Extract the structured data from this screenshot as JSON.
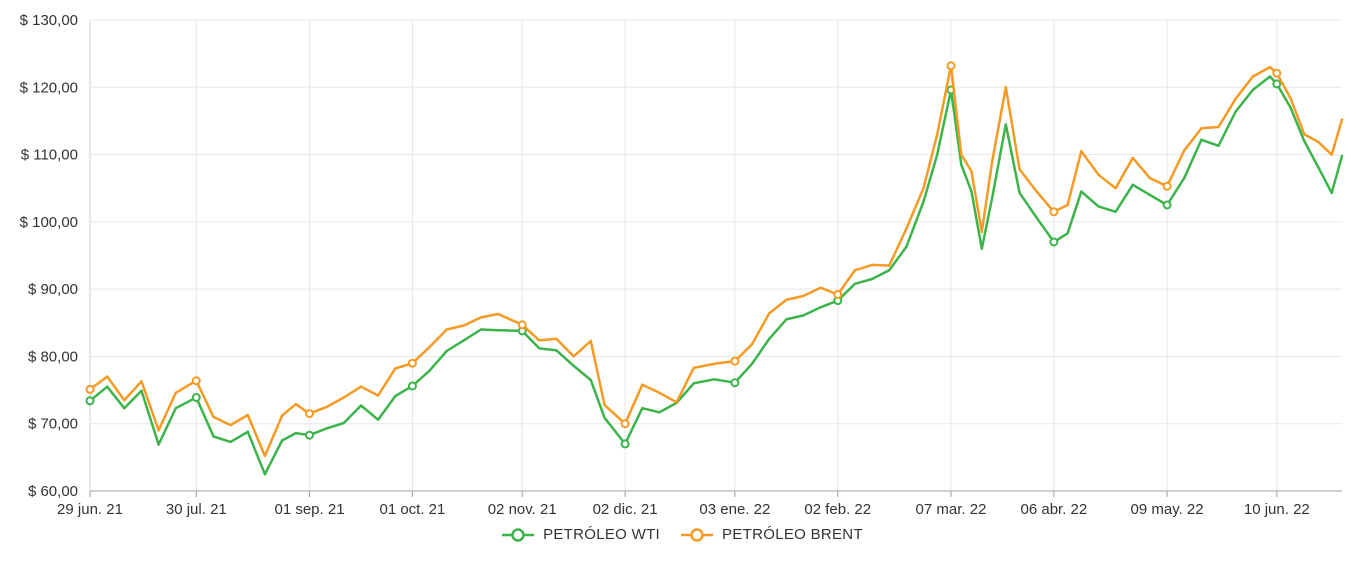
{
  "chart_data": {
    "type": "line",
    "title": "",
    "xlabel": "",
    "ylabel": "",
    "ylim": [
      60,
      130
    ],
    "y_ticks": [
      60,
      70,
      80,
      90,
      100,
      110,
      120,
      130
    ],
    "y_tick_labels": [
      "$ 60,00",
      "$ 70,00",
      "$ 80,00",
      "$ 90,00",
      "$ 100,00",
      "$ 110,00",
      "$ 120,00",
      "$ 130,00"
    ],
    "x_ticks": [
      "2021-06-29",
      "2021-07-30",
      "2021-09-01",
      "2021-10-01",
      "2021-11-02",
      "2021-12-02",
      "2022-01-03",
      "2022-02-02",
      "2022-03-07",
      "2022-04-06",
      "2022-05-09",
      "2022-06-10"
    ],
    "x_tick_labels": [
      "29 jun. 21",
      "30 jul. 21",
      "01 sep. 21",
      "01 oct. 21",
      "02 nov. 21",
      "02 dic. 21",
      "03 ene. 22",
      "02 feb. 22",
      "07 mar. 22",
      "06 abr. 22",
      "09 may. 22",
      "10 jun. 22"
    ],
    "x_range": [
      "2021-06-29",
      "2022-06-29"
    ],
    "grid": true,
    "legend_position": "bottom-center",
    "series": [
      {
        "name": "PETRÓLEO WTI",
        "color": "#3cb44b",
        "x": [
          "2021-06-29",
          "2021-07-04",
          "2021-07-09",
          "2021-07-14",
          "2021-07-19",
          "2021-07-24",
          "2021-07-30",
          "2021-08-04",
          "2021-08-09",
          "2021-08-14",
          "2021-08-19",
          "2021-08-24",
          "2021-08-28",
          "2021-09-01",
          "2021-09-06",
          "2021-09-11",
          "2021-09-16",
          "2021-09-21",
          "2021-09-26",
          "2021-10-01",
          "2021-10-06",
          "2021-10-11",
          "2021-10-16",
          "2021-10-21",
          "2021-10-26",
          "2021-11-02",
          "2021-11-07",
          "2021-11-12",
          "2021-11-17",
          "2021-11-22",
          "2021-11-26",
          "2021-12-02",
          "2021-12-07",
          "2021-12-12",
          "2021-12-17",
          "2021-12-22",
          "2021-12-28",
          "2022-01-03",
          "2022-01-08",
          "2022-01-13",
          "2022-01-18",
          "2022-01-23",
          "2022-01-28",
          "2022-02-02",
          "2022-02-07",
          "2022-02-12",
          "2022-02-17",
          "2022-02-22",
          "2022-02-27",
          "2022-03-03",
          "2022-03-07",
          "2022-03-10",
          "2022-03-13",
          "2022-03-16",
          "2022-03-19",
          "2022-03-23",
          "2022-03-27",
          "2022-04-01",
          "2022-04-06",
          "2022-04-10",
          "2022-04-14",
          "2022-04-19",
          "2022-04-24",
          "2022-04-29",
          "2022-05-04",
          "2022-05-09",
          "2022-05-14",
          "2022-05-19",
          "2022-05-24",
          "2022-05-29",
          "2022-06-03",
          "2022-06-08",
          "2022-06-10",
          "2022-06-14",
          "2022-06-18",
          "2022-06-22",
          "2022-06-26",
          "2022-06-29"
        ],
        "values": [
          73.4,
          75.5,
          72.3,
          74.9,
          66.9,
          72.3,
          73.9,
          68.1,
          67.3,
          68.8,
          62.5,
          67.5,
          68.6,
          68.3,
          69.3,
          70.1,
          72.7,
          70.6,
          74.1,
          75.6,
          77.9,
          80.8,
          82.4,
          84.0,
          83.9,
          83.8,
          81.2,
          80.9,
          78.6,
          76.5,
          70.9,
          67.0,
          72.3,
          71.7,
          73.1,
          76.0,
          76.6,
          76.1,
          78.9,
          82.6,
          85.5,
          86.1,
          87.3,
          88.3,
          90.8,
          91.5,
          92.8,
          96.3,
          103.0,
          110.0,
          119.6,
          108.5,
          104.5,
          96.0,
          103.5,
          114.5,
          104.3,
          100.6,
          97.0,
          98.3,
          104.5,
          102.3,
          101.5,
          105.5,
          104.0,
          102.5,
          106.5,
          112.2,
          111.3,
          116.4,
          119.6,
          121.6,
          120.5,
          117.0,
          112.0,
          108.2,
          104.3,
          109.8
        ]
      },
      {
        "name": "PETRÓLEO BRENT",
        "color": "#f59a23",
        "x": [
          "2021-06-29",
          "2021-07-04",
          "2021-07-09",
          "2021-07-14",
          "2021-07-19",
          "2021-07-24",
          "2021-07-30",
          "2021-08-04",
          "2021-08-09",
          "2021-08-14",
          "2021-08-19",
          "2021-08-24",
          "2021-08-28",
          "2021-09-01",
          "2021-09-06",
          "2021-09-11",
          "2021-09-16",
          "2021-09-21",
          "2021-09-26",
          "2021-10-01",
          "2021-10-06",
          "2021-10-11",
          "2021-10-16",
          "2021-10-21",
          "2021-10-26",
          "2021-11-02",
          "2021-11-07",
          "2021-11-12",
          "2021-11-17",
          "2021-11-22",
          "2021-11-26",
          "2021-12-02",
          "2021-12-07",
          "2021-12-12",
          "2021-12-17",
          "2021-12-22",
          "2021-12-28",
          "2022-01-03",
          "2022-01-08",
          "2022-01-13",
          "2022-01-18",
          "2022-01-23",
          "2022-01-28",
          "2022-02-02",
          "2022-02-07",
          "2022-02-12",
          "2022-02-17",
          "2022-02-22",
          "2022-02-27",
          "2022-03-03",
          "2022-03-07",
          "2022-03-10",
          "2022-03-13",
          "2022-03-16",
          "2022-03-19",
          "2022-03-23",
          "2022-03-27",
          "2022-04-01",
          "2022-04-06",
          "2022-04-10",
          "2022-04-14",
          "2022-04-19",
          "2022-04-24",
          "2022-04-29",
          "2022-05-04",
          "2022-05-09",
          "2022-05-14",
          "2022-05-19",
          "2022-05-24",
          "2022-05-29",
          "2022-06-03",
          "2022-06-08",
          "2022-06-10",
          "2022-06-14",
          "2022-06-18",
          "2022-06-22",
          "2022-06-26",
          "2022-06-29"
        ],
        "values": [
          75.1,
          77.0,
          73.5,
          76.3,
          69.0,
          74.6,
          76.4,
          71.0,
          69.8,
          71.3,
          65.2,
          71.2,
          72.9,
          71.5,
          72.5,
          73.9,
          75.5,
          74.2,
          78.2,
          79.0,
          81.4,
          84.0,
          84.6,
          85.8,
          86.3,
          84.7,
          82.4,
          82.6,
          80.0,
          82.3,
          72.8,
          70.0,
          75.8,
          74.6,
          73.2,
          78.3,
          78.9,
          79.3,
          81.8,
          86.4,
          88.4,
          89.0,
          90.2,
          89.2,
          92.8,
          93.6,
          93.5,
          99.0,
          105.0,
          113.0,
          123.2,
          110.0,
          107.5,
          98.5,
          108.9,
          120.0,
          107.8,
          104.5,
          101.5,
          102.5,
          110.5,
          107.0,
          105.0,
          109.5,
          106.5,
          105.3,
          110.6,
          113.9,
          114.1,
          118.3,
          121.6,
          123.0,
          122.1,
          118.4,
          113.0,
          111.9,
          110.0,
          115.2
        ]
      }
    ]
  },
  "legend": {
    "wti": "PETRÓLEO WTI",
    "brent": "PETRÓLEO BRENT"
  }
}
